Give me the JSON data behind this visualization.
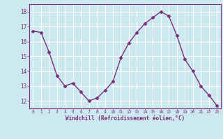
{
  "x": [
    0,
    1,
    2,
    3,
    4,
    5,
    6,
    7,
    8,
    9,
    10,
    11,
    12,
    13,
    14,
    15,
    16,
    17,
    18,
    19,
    20,
    21,
    22,
    23
  ],
  "y": [
    16.7,
    16.6,
    15.3,
    13.7,
    13.0,
    13.2,
    12.6,
    12.0,
    12.2,
    12.7,
    13.3,
    14.9,
    15.9,
    16.6,
    17.2,
    17.6,
    18.0,
    17.7,
    16.4,
    14.8,
    14.0,
    13.0,
    12.4,
    11.7
  ],
  "line_color": "#7b2f7b",
  "marker": "D",
  "marker_size": 2.5,
  "bg_color": "#cce9f0",
  "grid_color": "#ffffff",
  "xlabel": "Windchill (Refroidissement éolien,°C)",
  "xlabel_color": "#7b2f7b",
  "tick_color": "#7b2f7b",
  "spine_color": "#7b2f7b",
  "ylim": [
    11.5,
    18.5
  ],
  "xlim": [
    -0.5,
    23.5
  ],
  "yticks": [
    12,
    13,
    14,
    15,
    16,
    17,
    18
  ],
  "xticks": [
    0,
    1,
    2,
    3,
    4,
    5,
    6,
    7,
    8,
    9,
    10,
    11,
    12,
    13,
    14,
    15,
    16,
    17,
    18,
    19,
    20,
    21,
    22,
    23
  ]
}
